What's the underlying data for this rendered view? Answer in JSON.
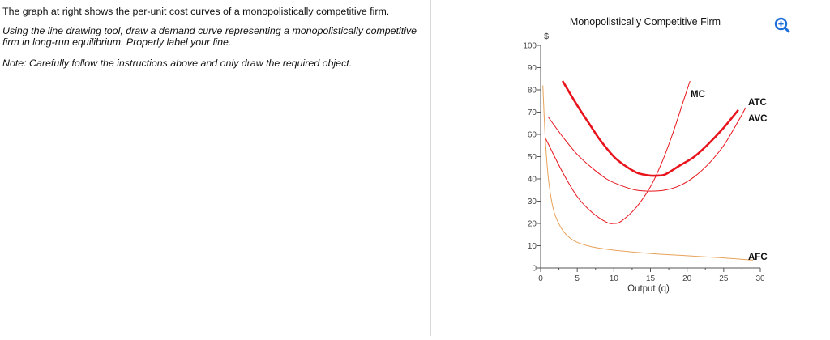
{
  "left": {
    "intro": "The graph at right shows the per-unit cost curves of a monopolistically competitive firm.",
    "instruction_tool": "Using the line drawing tool,",
    "instruction_rest": " draw a demand curve representing a monopolistically competitive firm in long-run equilibrium. Properly label your line.",
    "note": "Note: Carefully follow the instructions above and only draw the required object."
  },
  "zoom_icon": "zoom-in-icon",
  "colors": {
    "atc": "#e8141c",
    "avc_mc": "#e8141c",
    "afc": "#e8a25a",
    "zoom": "#1e6fd9",
    "axis": "#555555"
  },
  "chart_data": {
    "type": "line",
    "title": "Monopolistically Competitive Firm",
    "xlabel": "Output (q)",
    "ylabel": "$",
    "xlim": [
      0,
      30
    ],
    "ylim": [
      0,
      100
    ],
    "x_ticks": [
      0,
      5,
      10,
      15,
      20,
      25,
      30
    ],
    "y_ticks": [
      0,
      10,
      20,
      30,
      40,
      50,
      60,
      70,
      80,
      90,
      100
    ],
    "series": [
      {
        "name": "ATC",
        "values": [
          [
            3,
            84
          ],
          [
            5,
            73
          ],
          [
            7,
            63
          ],
          [
            8,
            58
          ],
          [
            10,
            50
          ],
          [
            11.5,
            46
          ],
          [
            13,
            43
          ],
          [
            14,
            42
          ],
          [
            15,
            41.5
          ],
          [
            16,
            41.5
          ],
          [
            17,
            42
          ],
          [
            19,
            46
          ],
          [
            21,
            50
          ],
          [
            23,
            56
          ],
          [
            25,
            63
          ],
          [
            27,
            71
          ]
        ]
      },
      {
        "name": "AVC",
        "values": [
          [
            1,
            68
          ],
          [
            3,
            59
          ],
          [
            5,
            51
          ],
          [
            7,
            45
          ],
          [
            9,
            40
          ],
          [
            11,
            37
          ],
          [
            13,
            35
          ],
          [
            15,
            34.5
          ],
          [
            17,
            35
          ],
          [
            19,
            37
          ],
          [
            21,
            41
          ],
          [
            23,
            47
          ],
          [
            25,
            55
          ],
          [
            27,
            66
          ],
          [
            28,
            72
          ]
        ]
      },
      {
        "name": "MC",
        "values": [
          [
            0.7,
            58
          ],
          [
            3,
            43
          ],
          [
            5,
            32
          ],
          [
            7,
            25
          ],
          [
            9,
            20.5
          ],
          [
            10,
            20
          ],
          [
            11,
            21
          ],
          [
            13,
            27
          ],
          [
            15,
            36.5
          ],
          [
            16.5,
            47
          ],
          [
            18,
            60
          ],
          [
            19.5,
            75
          ],
          [
            20.4,
            84
          ]
        ]
      },
      {
        "name": "AFC",
        "values": [
          [
            0.3,
            82
          ],
          [
            0.6,
            60
          ],
          [
            1,
            42
          ],
          [
            1.5,
            30
          ],
          [
            2,
            23.5
          ],
          [
            3,
            17
          ],
          [
            4,
            13.5
          ],
          [
            5,
            11.5
          ],
          [
            7,
            9.5
          ],
          [
            10,
            8
          ],
          [
            15,
            6.5
          ],
          [
            20,
            5.5
          ],
          [
            25,
            4.5
          ],
          [
            29,
            3.5
          ]
        ]
      }
    ],
    "annotations": [
      "MC",
      "ATC",
      "AVC",
      "AFC"
    ]
  }
}
